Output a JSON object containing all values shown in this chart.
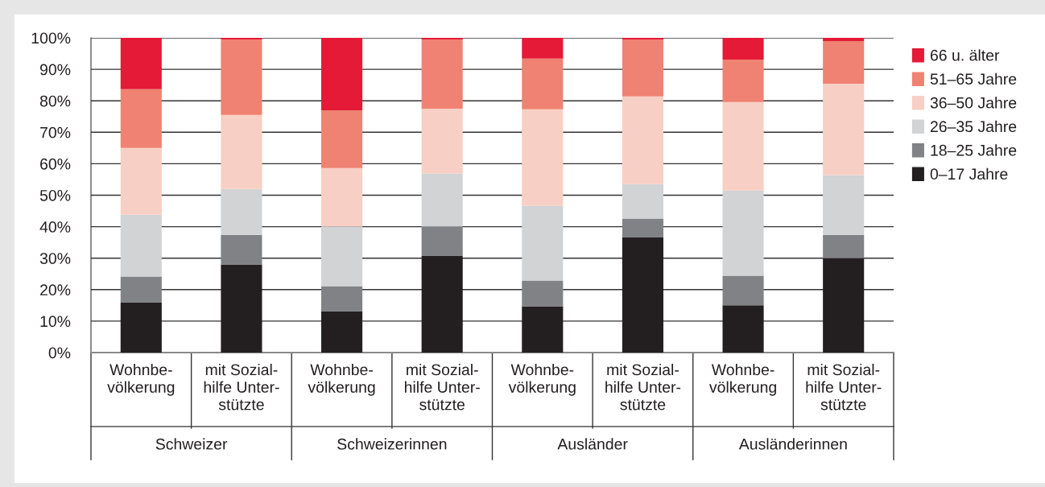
{
  "chart_data": {
    "type": "bar",
    "stacked": true,
    "categories": [
      "Wohnbe-\nvölkerung",
      "mit Sozial-\nhilfe Unter-\nstützte",
      "Wohnbe-\nvölkerung",
      "mit Sozial-\nhilfe Unter-\nstützte",
      "Wohnbe-\nvölkerung",
      "mit Sozial-\nhilfe Unter-\nstützte",
      "Wohnbe-\nvölkerung",
      "mit Sozial-\nhilfe Unter-\nstützte"
    ],
    "annotations": [
      "Schweizer",
      "Schweizerinnen",
      "Ausländer",
      "Ausländerinnen"
    ],
    "series": [
      {
        "name": "0–17 Jahre",
        "color": "#231f20",
        "values": [
          16.0,
          28.0,
          13.2,
          30.8,
          14.7,
          36.7,
          15.0,
          30.0
        ]
      },
      {
        "name": "18–25 Jahre",
        "color": "#808285",
        "values": [
          8.2,
          9.4,
          7.9,
          9.2,
          8.2,
          5.9,
          9.4,
          7.4
        ]
      },
      {
        "name": "26–35 Jahre",
        "color": "#d1d3d4",
        "values": [
          19.6,
          14.6,
          19.0,
          16.9,
          23.7,
          10.9,
          27.1,
          19.0
        ]
      },
      {
        "name": "36–50 Jahre",
        "color": "#f8cfc4",
        "values": [
          21.2,
          23.5,
          18.5,
          20.6,
          30.7,
          27.9,
          28.1,
          29.0
        ]
      },
      {
        "name": "51–65 Jahre",
        "color": "#ef8272",
        "values": [
          18.7,
          24.0,
          18.4,
          22.0,
          16.1,
          18.0,
          13.5,
          13.6
        ]
      },
      {
        "name": "66 u. älter",
        "color": "#e41a37",
        "values": [
          16.3,
          0.5,
          23.0,
          0.5,
          6.6,
          0.8,
          6.9,
          1.0
        ]
      }
    ],
    "ylim": [
      0,
      100
    ],
    "yticks": [
      {
        "value": 0,
        "label": "0%"
      },
      {
        "value": 10,
        "label": "10%"
      },
      {
        "value": 20,
        "label": "20%"
      },
      {
        "value": 30,
        "label": "30%"
      },
      {
        "value": 40,
        "label": "40%"
      },
      {
        "value": 50,
        "label": "50%"
      },
      {
        "value": 60,
        "label": "60%"
      },
      {
        "value": 70,
        "label": "70%"
      },
      {
        "value": 80,
        "label": "80%"
      },
      {
        "value": 90,
        "label": "90%"
      },
      {
        "value": 100,
        "label": "100%"
      }
    ],
    "grid": "y",
    "legend": "right"
  }
}
